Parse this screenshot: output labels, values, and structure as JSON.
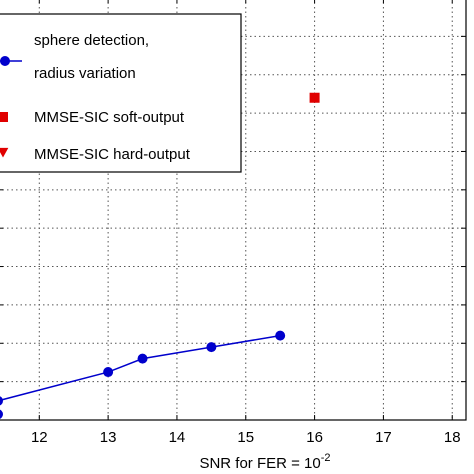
{
  "chart_data": {
    "type": "scatter",
    "xlabel_base": "SNR for FER = 10",
    "xlabel_exp": "-2",
    "xlim": [
      11.4,
      18.2
    ],
    "ylim": [
      0,
      11
    ],
    "xticks": [
      12,
      13,
      14,
      15,
      16,
      17,
      18
    ],
    "grid": true,
    "legend_position": "top-left",
    "series": [
      {
        "name": "sphere detection,\nradius variation",
        "legend_lines": [
          "sphere detection,",
          "radius variation"
        ],
        "marker": "circle",
        "line": true,
        "color": "#0000cc",
        "x": [
          11.4,
          11.4,
          13.0,
          13.5,
          14.5,
          15.5
        ],
        "y": [
          0.15,
          0.5,
          1.25,
          1.6,
          1.9,
          2.2
        ]
      },
      {
        "name": "MMSE-SIC soft-output",
        "legend_lines": [
          "MMSE-SIC soft-output"
        ],
        "marker": "square",
        "line": false,
        "color": "#e00000",
        "x": [
          16.0
        ],
        "y": [
          8.4
        ]
      },
      {
        "name": "MMSE-SIC hard-output",
        "legend_lines": [
          "MMSE-SIC hard-output"
        ],
        "marker": "triangle-down",
        "line": false,
        "color": "#e00000",
        "x": [],
        "y": []
      }
    ]
  }
}
